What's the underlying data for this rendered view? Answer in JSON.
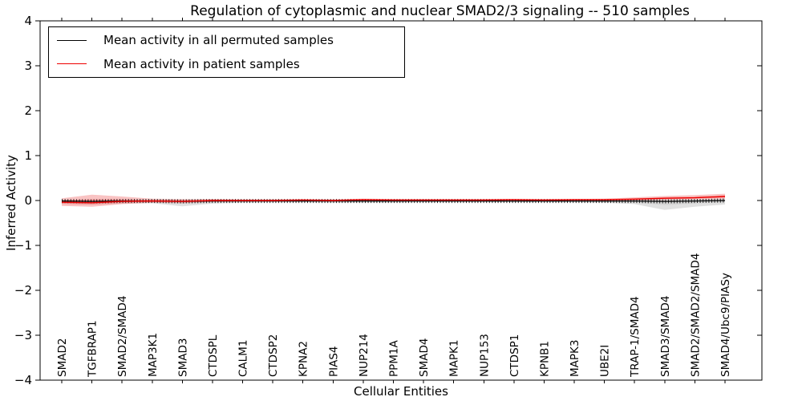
{
  "title": "Regulation of cytoplasmic and nuclear SMAD2/3 signaling -- 510 samples",
  "chart_data": {
    "type": "line",
    "title": "Regulation of cytoplasmic and nuclear SMAD2/3 signaling -- 510 samples",
    "xlabel": "Cellular Entities",
    "ylabel": "Inferred Activity",
    "ylim": [
      -4,
      4
    ],
    "yticks": [
      -4,
      -3,
      -2,
      -1,
      0,
      1,
      2,
      3,
      4
    ],
    "grid": false,
    "legend_position": "upper left",
    "categories": [
      "SMAD2",
      "TGFBRAP1",
      "SMAD2/SMAD4",
      "MAP3K1",
      "SMAD3",
      "CTDSPL",
      "CALM1",
      "CTDSP2",
      "KPNA2",
      "PIAS4",
      "NUP214",
      "PPM1A",
      "SMAD4",
      "MAPK1",
      "NUP153",
      "CTDSP1",
      "KPNB1",
      "MAPK3",
      "UBE2I",
      "TRAP-1/SMAD4",
      "SMAD3/SMAD4",
      "SMAD2/SMAD2/SMAD4",
      "SMAD4/Ubc9/PIASy"
    ],
    "series": [
      {
        "name": "Mean activity in all permuted samples",
        "color": "#000000",
        "values": [
          -0.01,
          -0.02,
          -0.01,
          -0.01,
          -0.02,
          -0.01,
          -0.01,
          -0.01,
          -0.01,
          -0.01,
          -0.01,
          -0.01,
          -0.01,
          -0.01,
          -0.01,
          -0.01,
          -0.01,
          -0.01,
          -0.01,
          -0.01,
          -0.02,
          -0.01,
          0.0
        ]
      },
      {
        "name": "Mean activity in patient samples",
        "color": "#ee0000",
        "values": [
          -0.04,
          -0.05,
          -0.02,
          -0.01,
          -0.02,
          0.0,
          0.0,
          0.0,
          0.01,
          0.0,
          0.02,
          0.01,
          0.01,
          0.01,
          0.01,
          0.02,
          0.01,
          0.02,
          0.02,
          0.03,
          0.05,
          0.06,
          0.09
        ]
      }
    ],
    "bands": [
      {
        "name": "permuted-samples-range",
        "color": "#c9c9c9",
        "opacity": 0.55,
        "upper": [
          0.02,
          0.02,
          0.02,
          0.02,
          0.02,
          0.02,
          0.02,
          0.02,
          0.02,
          0.02,
          0.02,
          0.02,
          0.02,
          0.02,
          0.02,
          0.02,
          0.02,
          0.02,
          0.02,
          0.02,
          0.03,
          0.03,
          0.04
        ],
        "lower": [
          -0.07,
          -0.09,
          -0.07,
          -0.06,
          -0.13,
          -0.07,
          -0.05,
          -0.04,
          -0.04,
          -0.05,
          -0.05,
          -0.05,
          -0.04,
          -0.04,
          -0.04,
          -0.04,
          -0.04,
          -0.04,
          -0.05,
          -0.08,
          -0.21,
          -0.14,
          -0.09
        ]
      },
      {
        "name": "patient-samples-range",
        "color": "#f07070",
        "opacity": 0.42,
        "upper": [
          0.05,
          0.13,
          0.09,
          0.04,
          0.03,
          0.03,
          0.02,
          0.02,
          0.03,
          0.02,
          0.04,
          0.03,
          0.03,
          0.03,
          0.03,
          0.03,
          0.03,
          0.03,
          0.04,
          0.07,
          0.1,
          0.12,
          0.15
        ],
        "lower": [
          -0.12,
          -0.14,
          -0.08,
          -0.05,
          -0.06,
          -0.03,
          -0.02,
          -0.02,
          -0.01,
          -0.02,
          0.0,
          -0.01,
          -0.01,
          -0.01,
          -0.01,
          0.0,
          -0.01,
          0.0,
          0.0,
          0.0,
          0.01,
          0.02,
          0.03
        ]
      }
    ]
  }
}
